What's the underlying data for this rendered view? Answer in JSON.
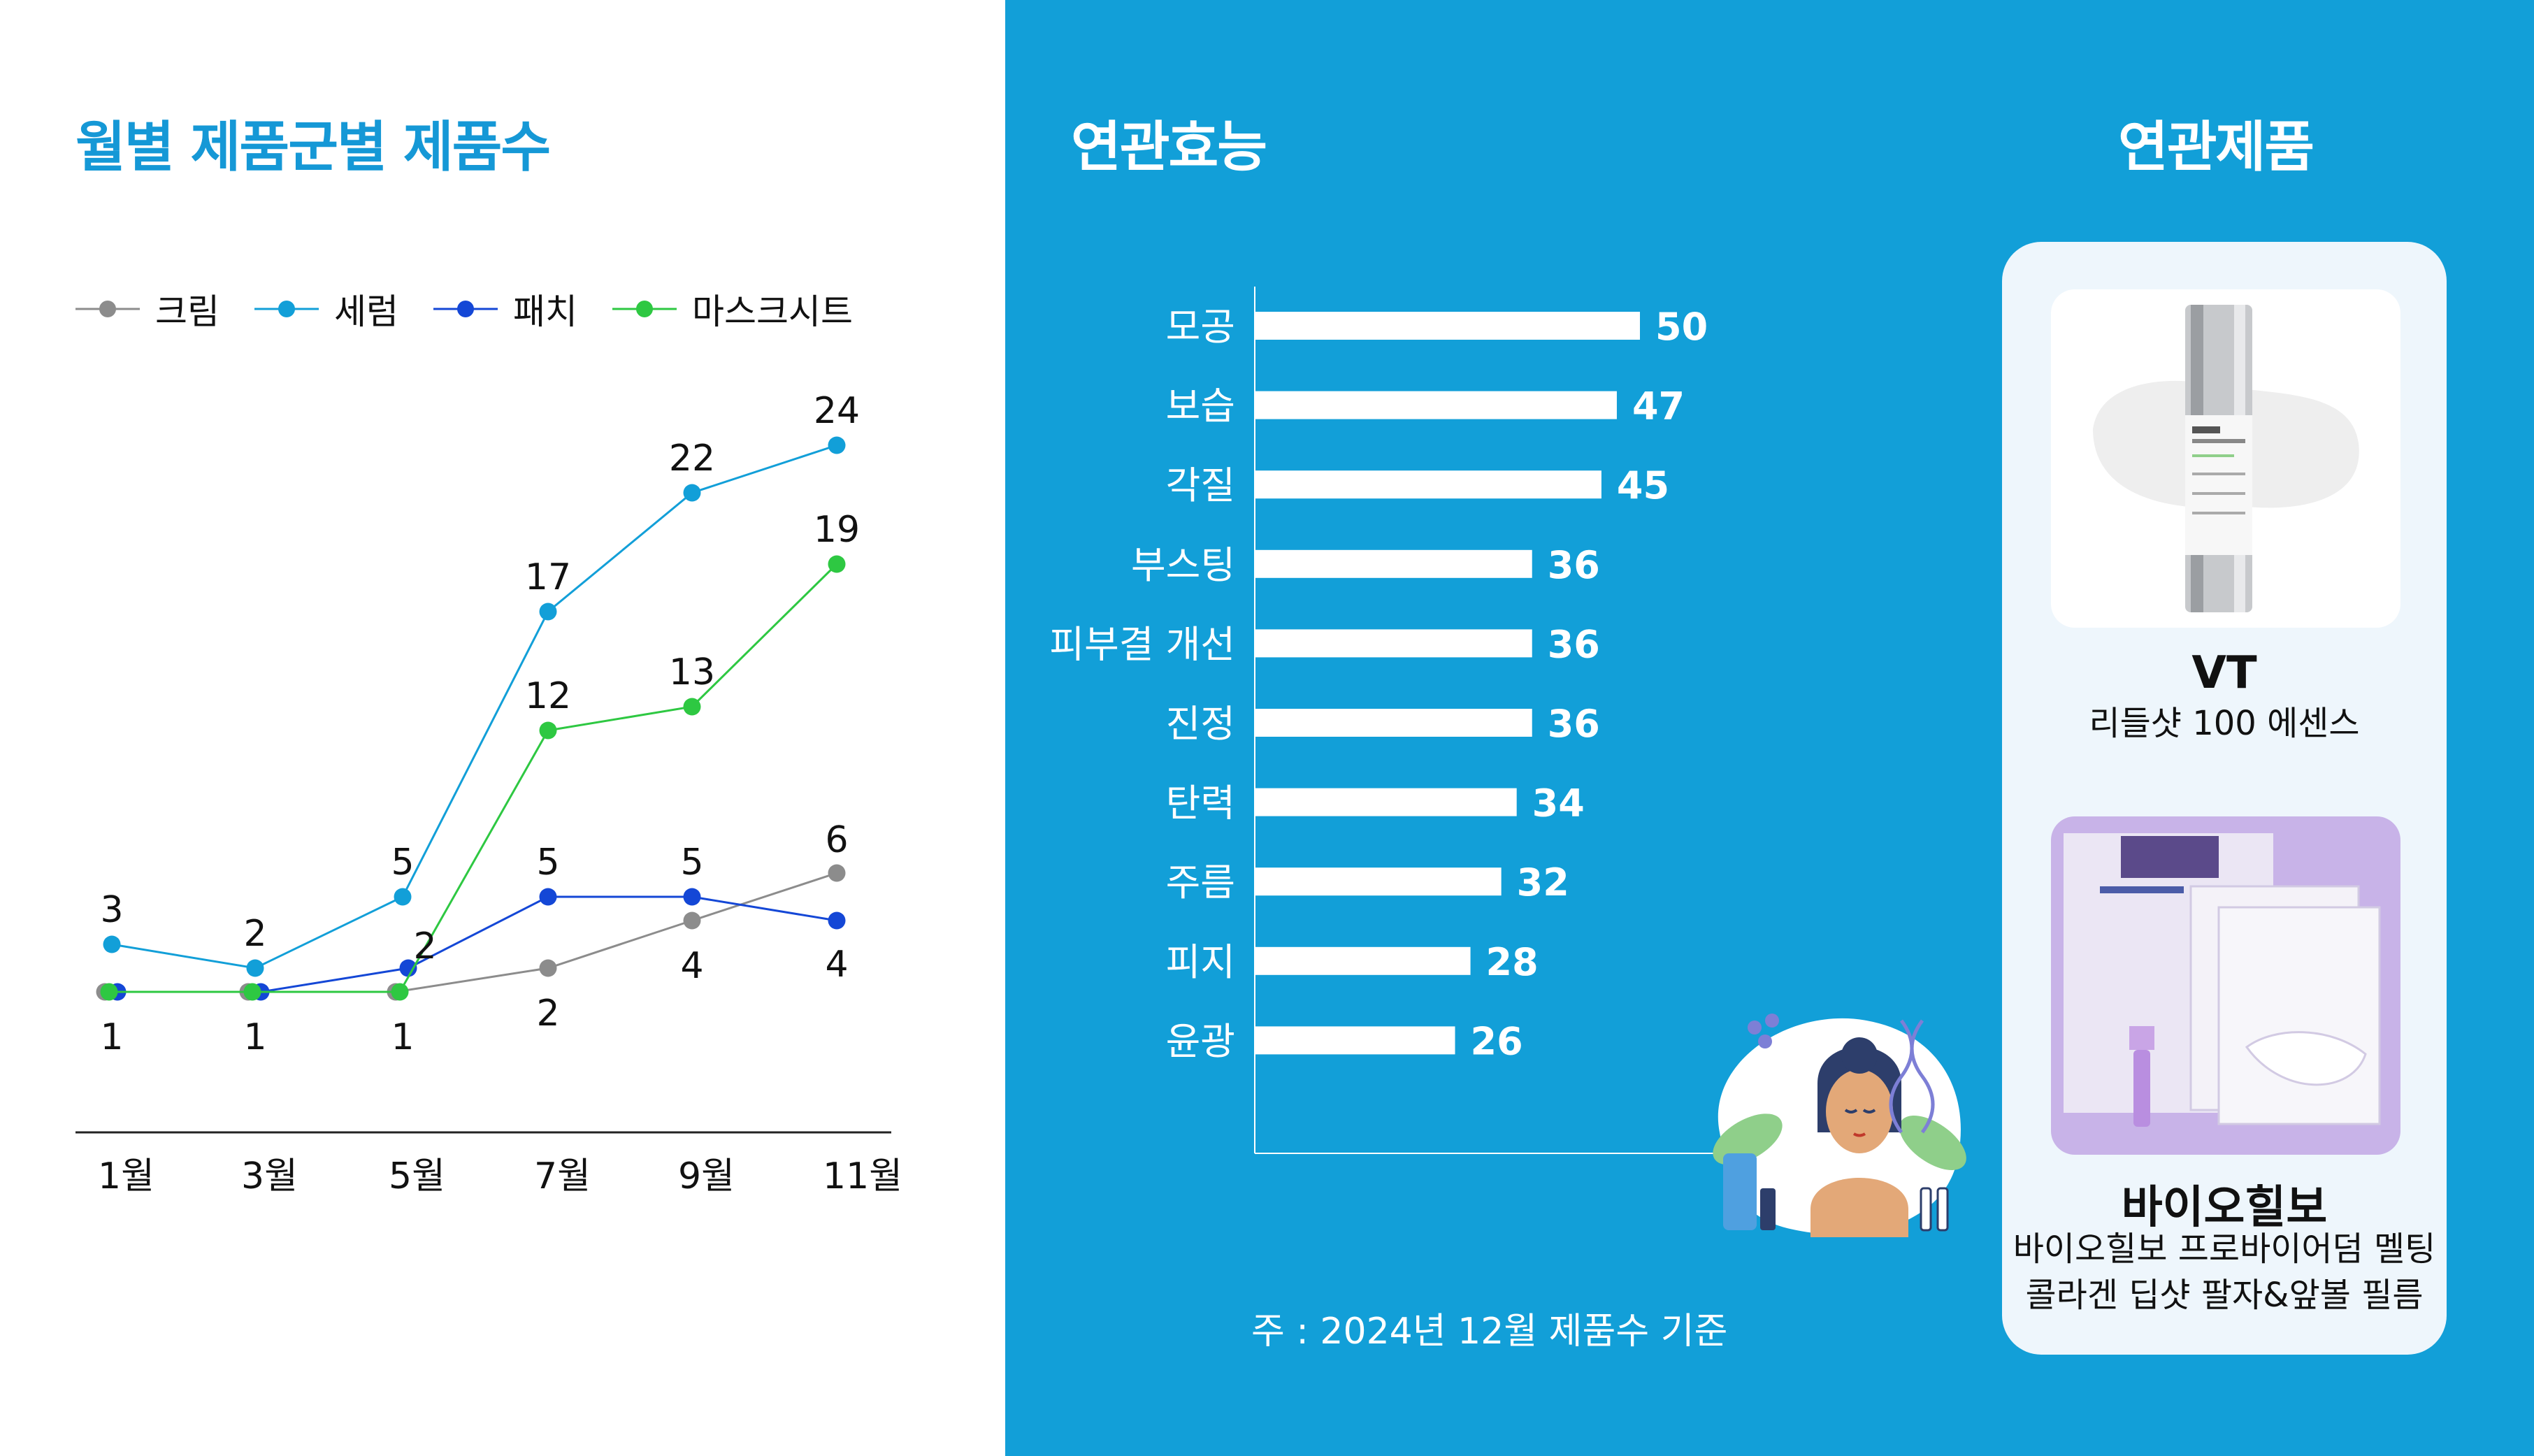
{
  "left_panel": {
    "title": "월별 제품군별 제품수"
  },
  "right_panel": {
    "title_effects": "연관효능",
    "title_products": "연관제품",
    "footnote": "주 : 2024년 12월 제품수 기준"
  },
  "colors": {
    "panel_bg": "#129fd8",
    "title_blue": "#1598d6",
    "card_bg": "#eef6fc",
    "bar": "#ffffff"
  },
  "products": [
    {
      "brand": "VT",
      "name": "리들샷 100 에센스",
      "image": "serum-bottle-image"
    },
    {
      "brand": "바이오힐보",
      "name_line1": "바이오힐보 프로바이어덤 멜팅",
      "name_line2": "콜라겐 딥샷 팔자&앞볼 필름",
      "image": "mask-pack-image"
    }
  ],
  "chart_data": [
    {
      "type": "line",
      "title": "월별 제품군별 제품수",
      "categories": [
        "1월",
        "3월",
        "5월",
        "7월",
        "9월",
        "11월"
      ],
      "series": [
        {
          "name": "크림",
          "color": "#8c8c8c",
          "values": [
            1,
            1,
            1,
            2,
            4,
            6
          ]
        },
        {
          "name": "세럼",
          "color": "#129fd8",
          "values": [
            3,
            2,
            5,
            17,
            22,
            24
          ]
        },
        {
          "name": "패치",
          "color": "#1447d6",
          "values": [
            1,
            1,
            2,
            5,
            5,
            4
          ]
        },
        {
          "name": "마스크시트",
          "color": "#2ec842",
          "values": [
            1,
            1,
            1,
            12,
            13,
            19
          ]
        }
      ],
      "labels_shown": [
        {
          "series": "세럼",
          "index": 0,
          "text": "3"
        },
        {
          "series": "크림",
          "index": 0,
          "text": "1"
        },
        {
          "series": "세럼",
          "index": 1,
          "text": "2"
        },
        {
          "series": "크림",
          "index": 1,
          "text": "1"
        },
        {
          "series": "세럼",
          "index": 2,
          "text": "5"
        },
        {
          "series": "패치",
          "index": 2,
          "text": "2"
        },
        {
          "series": "크림",
          "index": 2,
          "text": "1"
        },
        {
          "series": "세럼",
          "index": 3,
          "text": "17"
        },
        {
          "series": "마스크시트",
          "index": 3,
          "text": "12"
        },
        {
          "series": "패치",
          "index": 3,
          "text": "5"
        },
        {
          "series": "크림",
          "index": 3,
          "text": "2"
        },
        {
          "series": "세럼",
          "index": 4,
          "text": "22"
        },
        {
          "series": "마스크시트",
          "index": 4,
          "text": "13"
        },
        {
          "series": "패치",
          "index": 4,
          "text": "5"
        },
        {
          "series": "크림",
          "index": 4,
          "text": "4"
        },
        {
          "series": "세럼",
          "index": 5,
          "text": "24"
        },
        {
          "series": "마스크시트",
          "index": 5,
          "text": "19"
        },
        {
          "series": "크림",
          "index": 5,
          "text": "6"
        },
        {
          "series": "패치",
          "index": 5,
          "text": "4"
        }
      ],
      "legend_position": "top-left",
      "grid": false
    },
    {
      "type": "bar",
      "orientation": "horizontal",
      "title": "연관효능",
      "categories": [
        "모공",
        "보습",
        "각질",
        "부스팅",
        "피부결 개선",
        "진정",
        "탄력",
        "주름",
        "피지",
        "윤광"
      ],
      "values": [
        50,
        47,
        45,
        36,
        36,
        36,
        34,
        32,
        28,
        26
      ],
      "xlim": [
        0,
        50
      ],
      "grid": false
    }
  ]
}
